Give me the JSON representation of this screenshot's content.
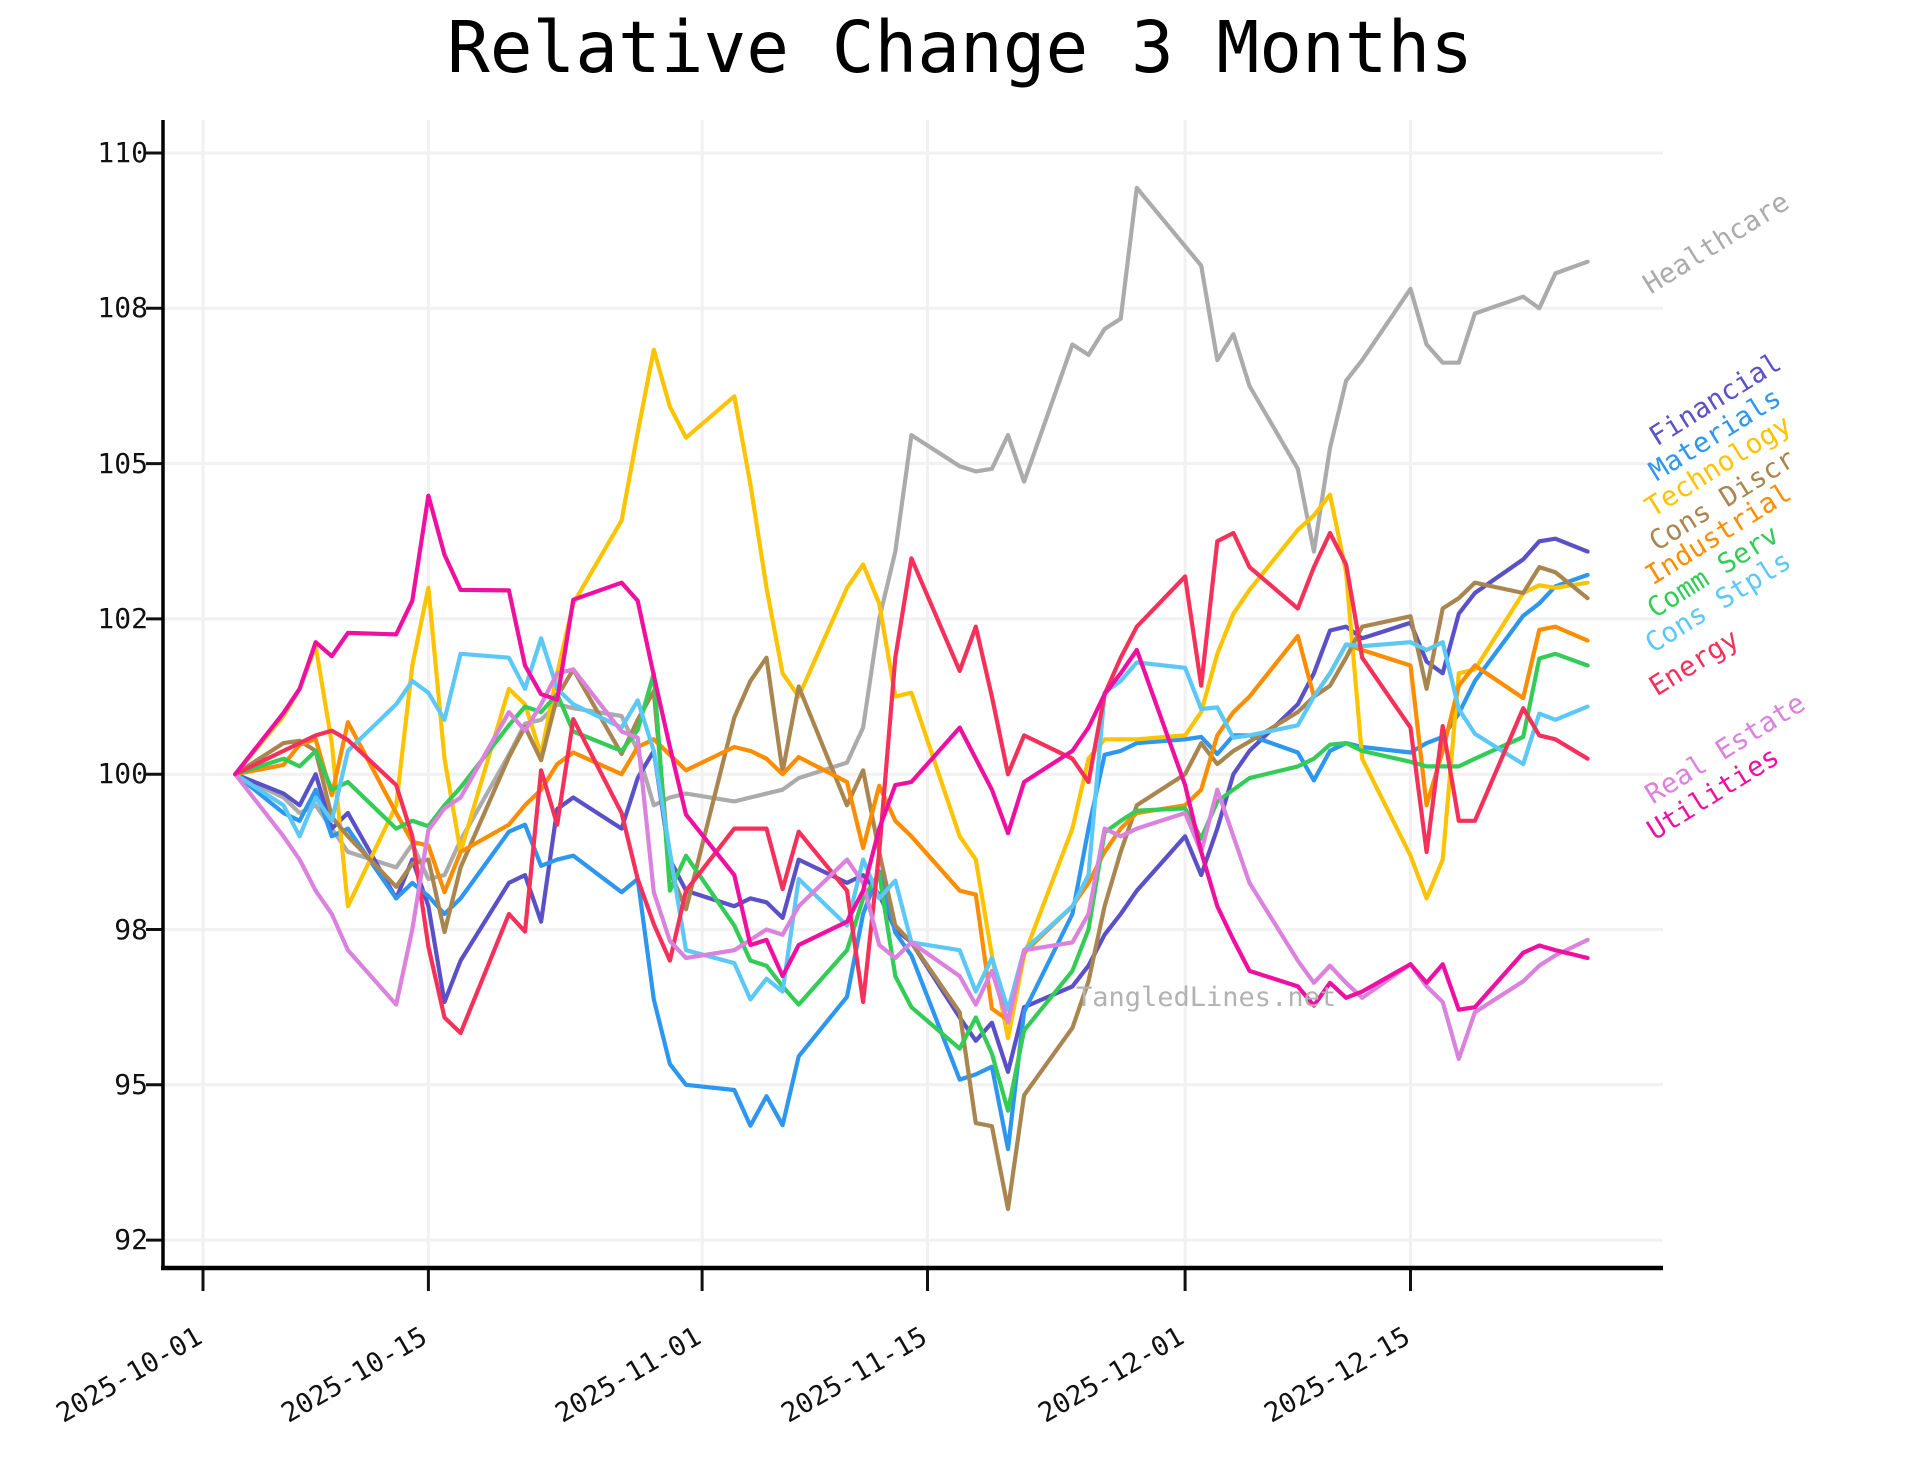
{
  "title": "Relative Change 3 Months",
  "watermark": "TangledLines.net",
  "chart_data": {
    "type": "line",
    "title": "Relative Change 3 Months",
    "xlabel": "",
    "ylabel": "",
    "grid": true,
    "legend_position": "right-edge-labels",
    "x_axis": {
      "start_date": "2025-10-01",
      "tick_labels": [
        "2025-10-01",
        "2025-10-15",
        "2025-11-01",
        "2025-11-15",
        "2025-12-01",
        "2025-12-15"
      ],
      "tick_days": [
        0,
        14,
        31,
        45,
        61,
        75
      ]
    },
    "y_axis": {
      "ticks": [
        110,
        108,
        105,
        102,
        100,
        98,
        95,
        92
      ],
      "tick_labels": [
        "110",
        "108",
        "105",
        "102",
        "100",
        "98",
        "95",
        "92"
      ],
      "ylim": [
        91.5,
        110.8
      ]
    },
    "days": [
      2,
      5,
      6,
      7,
      8,
      9,
      12,
      13,
      14,
      15,
      16,
      19,
      20,
      21,
      22,
      23,
      26,
      27,
      28,
      29,
      30,
      33,
      34,
      35,
      36,
      37,
      40,
      41,
      42,
      43,
      44,
      47,
      48,
      49,
      50,
      51,
      54,
      55,
      56,
      57,
      58,
      61,
      62,
      63,
      64,
      65,
      68,
      69,
      70,
      71,
      72,
      75,
      76,
      77,
      78,
      79,
      82,
      83,
      84,
      86
    ],
    "series": [
      {
        "name": "Healthcare",
        "color": "#ababab",
        "values": [
          100,
          99.7,
          99.5,
          99.6,
          99.3,
          99.0,
          98.8,
          99.1,
          98.65,
          98.7,
          99.15,
          100.25,
          100.65,
          100.7,
          100.9,
          100.85,
          100.75,
          100.3,
          99.6,
          99.7,
          99.75,
          99.65,
          99.7,
          99.75,
          99.8,
          99.95,
          100.15,
          100.6,
          102.0,
          103.3,
          105.55,
          104.95,
          104.85,
          104.9,
          105.55,
          104.65,
          107.3,
          107.1,
          107.6,
          107.8,
          109.55,
          108.8,
          108.55,
          107.0,
          107.5,
          106.5,
          104.9,
          103.3,
          105.3,
          106.6,
          107.0,
          108.25,
          107.3,
          106.95,
          106.95,
          107.9,
          108.15,
          108.0,
          108.45,
          108.6
        ]
      },
      {
        "name": "Financial",
        "color": "#5a50c8",
        "values": [
          100,
          99.75,
          99.6,
          100.0,
          99.3,
          99.5,
          98.4,
          98.9,
          98.3,
          96.6,
          97.4,
          98.6,
          98.7,
          98.1,
          99.55,
          99.7,
          99.3,
          99.95,
          100.3,
          98.9,
          98.5,
          98.3,
          98.4,
          98.35,
          98.15,
          98.9,
          98.6,
          98.7,
          98.45,
          98.0,
          97.75,
          96.3,
          95.85,
          96.2,
          95.25,
          96.5,
          96.9,
          97.3,
          97.9,
          98.2,
          98.5,
          99.2,
          98.7,
          99.3,
          100.0,
          100.3,
          100.9,
          101.3,
          101.85,
          101.9,
          101.75,
          101.95,
          101.45,
          101.3,
          102.1,
          102.5,
          103.15,
          103.5,
          103.55,
          103.3
        ]
      },
      {
        "name": "Materials",
        "color": "#2d96ee",
        "values": [
          100,
          99.5,
          99.4,
          99.8,
          99.2,
          99.3,
          98.4,
          98.6,
          98.43,
          98.2,
          98.4,
          99.26,
          99.35,
          98.82,
          98.9,
          98.95,
          98.48,
          98.65,
          96.65,
          95.4,
          95.0,
          94.9,
          94.21,
          94.78,
          94.22,
          95.55,
          96.7,
          98.2,
          98.75,
          97.94,
          97.5,
          95.1,
          95.2,
          95.35,
          93.76,
          96.41,
          98.2,
          99.3,
          100.25,
          100.3,
          100.4,
          100.45,
          100.48,
          100.26,
          100.5,
          100.5,
          100.28,
          99.92,
          100.3,
          100.4,
          100.35,
          100.28,
          100.4,
          100.48,
          100.78,
          101.2,
          102.06,
          102.3,
          102.63,
          102.85
        ]
      },
      {
        "name": "Technology",
        "color": "#fcc400",
        "values": [
          100,
          100.75,
          101.1,
          101.65,
          100.4,
          98.3,
          99.6,
          101.4,
          102.6,
          100.2,
          99.0,
          101.1,
          100.9,
          100.25,
          101.3,
          102.3,
          103.9,
          105.6,
          107.2,
          106.1,
          105.5,
          106.3,
          104.6,
          102.6,
          101.3,
          101.0,
          102.6,
          103.05,
          102.3,
          101.0,
          101.05,
          99.2,
          98.9,
          97.5,
          95.9,
          97.5,
          99.3,
          100.2,
          100.45,
          100.45,
          100.45,
          100.5,
          100.8,
          101.55,
          102.1,
          102.56,
          103.72,
          104.0,
          104.4,
          102.9,
          100.2,
          98.95,
          98.4,
          98.9,
          101.3,
          101.35,
          102.5,
          102.65,
          102.6,
          102.7
        ]
      },
      {
        "name": "Cons Discr",
        "color": "#a98550",
        "values": [
          100,
          100.4,
          100.43,
          100.3,
          99.45,
          99.2,
          98.55,
          98.85,
          98.9,
          97.95,
          98.8,
          100.22,
          100.61,
          100.18,
          101.0,
          101.35,
          100.26,
          100.7,
          101.07,
          98.75,
          98.26,
          100.73,
          101.2,
          101.5,
          100.03,
          101.13,
          99.6,
          100.05,
          99.0,
          98.05,
          97.75,
          96.4,
          94.26,
          94.2,
          92.6,
          94.8,
          96.1,
          97.0,
          98.3,
          99.0,
          99.6,
          100.0,
          100.4,
          100.13,
          100.3,
          100.42,
          100.8,
          101.0,
          101.14,
          101.5,
          101.9,
          102.05,
          101.1,
          102.2,
          102.4,
          102.7,
          102.5,
          103.0,
          102.9,
          102.4
        ]
      },
      {
        "name": "Industrial",
        "color": "#fb8d00",
        "values": [
          100,
          100.12,
          100.38,
          100.45,
          99.73,
          100.67,
          99.5,
          99.13,
          99.08,
          98.48,
          99.0,
          99.35,
          99.6,
          99.8,
          100.13,
          100.28,
          100.0,
          100.35,
          100.45,
          100.25,
          100.05,
          100.35,
          100.3,
          100.2,
          100.0,
          100.22,
          99.9,
          99.05,
          99.85,
          99.4,
          99.2,
          98.5,
          98.45,
          96.47,
          96.25,
          97.55,
          98.3,
          98.6,
          99.0,
          99.3,
          99.5,
          99.6,
          99.8,
          100.5,
          100.8,
          101.0,
          101.78,
          101.0,
          101.3,
          101.67,
          101.6,
          101.4,
          99.6,
          100.3,
          101.14,
          101.4,
          100.98,
          101.86,
          101.9,
          101.72
        ]
      },
      {
        "name": "Comm Serv",
        "color": "#34cb57",
        "values": [
          100,
          100.2,
          100.1,
          100.3,
          99.8,
          99.9,
          99.3,
          99.4,
          99.33,
          99.6,
          99.83,
          100.63,
          100.87,
          100.8,
          101.03,
          100.55,
          100.3,
          100.57,
          101.3,
          98.5,
          98.95,
          98.05,
          97.4,
          97.3,
          96.9,
          96.55,
          97.6,
          98.4,
          98.72,
          97.1,
          96.5,
          95.7,
          96.3,
          95.6,
          94.5,
          96.05,
          97.2,
          98.0,
          99.25,
          99.4,
          99.53,
          99.56,
          99.17,
          99.65,
          99.8,
          99.95,
          100.1,
          100.2,
          100.38,
          100.4,
          100.3,
          100.16,
          100.1,
          100.1,
          100.1,
          100.2,
          100.48,
          101.49,
          101.55,
          101.4
        ]
      },
      {
        "name": "Cons Stpls",
        "color": "#5bc8f5",
        "values": [
          100,
          99.6,
          99.2,
          99.7,
          99.4,
          100.3,
          100.9,
          101.2,
          101.05,
          100.7,
          101.55,
          101.5,
          101.1,
          101.75,
          101.1,
          100.9,
          100.6,
          100.95,
          100.3,
          99.0,
          97.6,
          97.35,
          96.65,
          97.05,
          96.8,
          98.65,
          98.05,
          98.9,
          98.4,
          98.63,
          97.75,
          97.6,
          96.8,
          97.45,
          96.45,
          97.6,
          98.3,
          98.7,
          101.05,
          101.2,
          101.44,
          101.37,
          100.84,
          100.86,
          100.47,
          100.5,
          100.63,
          101.0,
          101.3,
          101.67,
          101.65,
          101.7,
          101.6,
          101.7,
          100.84,
          100.52,
          100.13,
          100.78,
          100.7,
          100.87
        ]
      },
      {
        "name": "Energy",
        "color": "#f4315a",
        "values": [
          100,
          100.3,
          100.4,
          100.5,
          100.56,
          100.44,
          99.86,
          99.2,
          97.67,
          96.3,
          96.0,
          98.2,
          97.96,
          100.05,
          99.35,
          100.71,
          99.5,
          98.65,
          98.07,
          97.4,
          98.5,
          99.3,
          99.3,
          99.3,
          98.52,
          99.26,
          98.5,
          96.6,
          99.0,
          101.5,
          103.17,
          101.33,
          101.9,
          101.0,
          100.0,
          100.5,
          100.2,
          99.9,
          101.03,
          101.5,
          101.9,
          102.82,
          101.14,
          103.5,
          103.66,
          103.0,
          102.2,
          103.0,
          103.66,
          103.05,
          101.5,
          100.6,
          99.0,
          100.62,
          99.4,
          99.4,
          100.85,
          100.5,
          100.45,
          100.2
        ]
      },
      {
        "name": "Real Estate",
        "color": "#da82de",
        "values": [
          100,
          99.2,
          98.9,
          98.5,
          98.2,
          97.6,
          96.55,
          98.0,
          99.28,
          99.56,
          99.7,
          100.8,
          100.56,
          100.9,
          101.3,
          101.35,
          100.55,
          100.47,
          98.48,
          97.78,
          97.45,
          97.6,
          97.8,
          98.0,
          97.9,
          98.3,
          98.9,
          98.6,
          97.7,
          97.45,
          97.75,
          97.1,
          96.55,
          97.2,
          96.2,
          97.6,
          97.75,
          98.2,
          99.3,
          99.2,
          99.3,
          99.5,
          99.0,
          99.8,
          99.2,
          98.6,
          97.4,
          96.97,
          97.3,
          96.97,
          96.68,
          97.33,
          96.9,
          96.6,
          95.5,
          96.4,
          97.0,
          97.3,
          97.5,
          97.8
        ]
      },
      {
        "name": "Utilities",
        "color": "#ef0fa0",
        "values": [
          100,
          100.79,
          101.1,
          101.7,
          101.52,
          101.82,
          101.8,
          102.35,
          104.38,
          103.24,
          102.56,
          102.55,
          101.4,
          101.03,
          100.96,
          102.37,
          102.7,
          102.35,
          101.27,
          100.35,
          99.48,
          98.7,
          97.7,
          97.8,
          97.1,
          97.7,
          98.1,
          98.5,
          99.3,
          99.86,
          99.9,
          100.6,
          100.2,
          99.8,
          99.24,
          99.9,
          100.3,
          100.6,
          101.03,
          101.3,
          101.6,
          99.86,
          99.0,
          98.3,
          97.8,
          97.2,
          96.9,
          96.53,
          96.97,
          96.68,
          96.8,
          97.33,
          96.97,
          97.33,
          96.45,
          96.5,
          97.55,
          97.69,
          97.6,
          97.45
        ]
      }
    ]
  }
}
